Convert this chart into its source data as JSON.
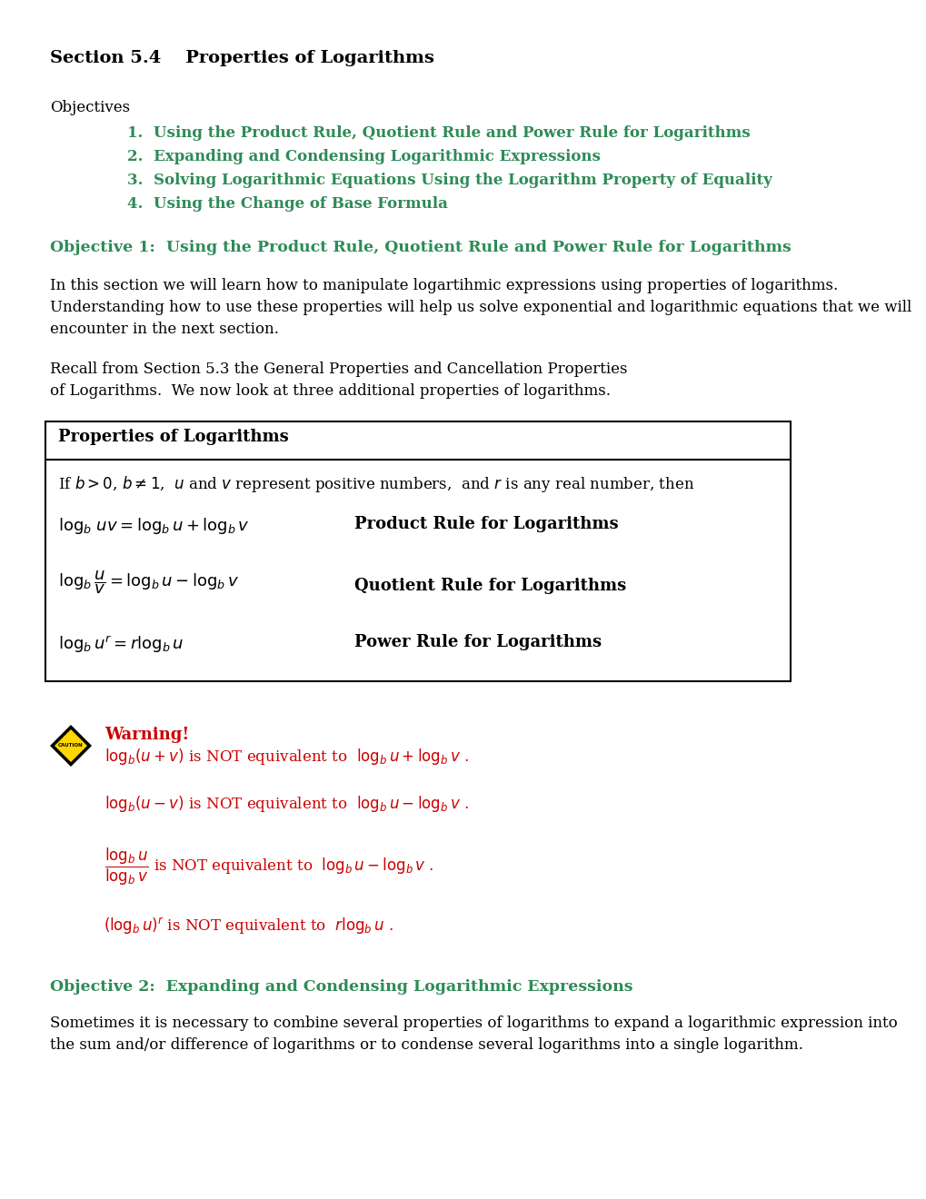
{
  "bg_color": "#ffffff",
  "text_color_black": "#000000",
  "text_color_green": "#2e8b57",
  "text_color_red": "#cc0000",
  "section_title": "Section 5.4    Properties of Logarithms",
  "objectives_label": "Objectives",
  "objectives": [
    "Using the Product Rule, Quotient Rule and Power Rule for Logarithms",
    "Expanding and Condensing Logarithmic Expressions",
    "Solving Logarithmic Equations Using the Logarithm Property of Equality",
    "Using the Change of Base Formula"
  ],
  "obj1_heading": "Objective 1:  Using the Product Rule, Quotient Rule and Power Rule for Logarithms",
  "intro_line1": "In this section we will learn how to manipulate logartihmic expressions using properties of logarithms.",
  "intro_line2": "Understanding how to use these properties will help us solve exponential and logarithmic equations that we will",
  "intro_line3": "encounter in the next section.",
  "recall_line1": "Recall from Section 5.3 the General Properties and Cancellation Properties",
  "recall_line2": "of Logarithms.  We now look at three additional properties of logarithms.",
  "box_title": "Properties of Logarithms",
  "obj2_heading": "Objective 2:  Expanding and Condensing Logarithmic Expressions",
  "obj2_line1": "Sometimes it is necessary to combine several properties of logarithms to expand a logarithmic expression into",
  "obj2_line2": "the sum and/or difference of logarithms or to condense several logarithms into a single logarithm."
}
